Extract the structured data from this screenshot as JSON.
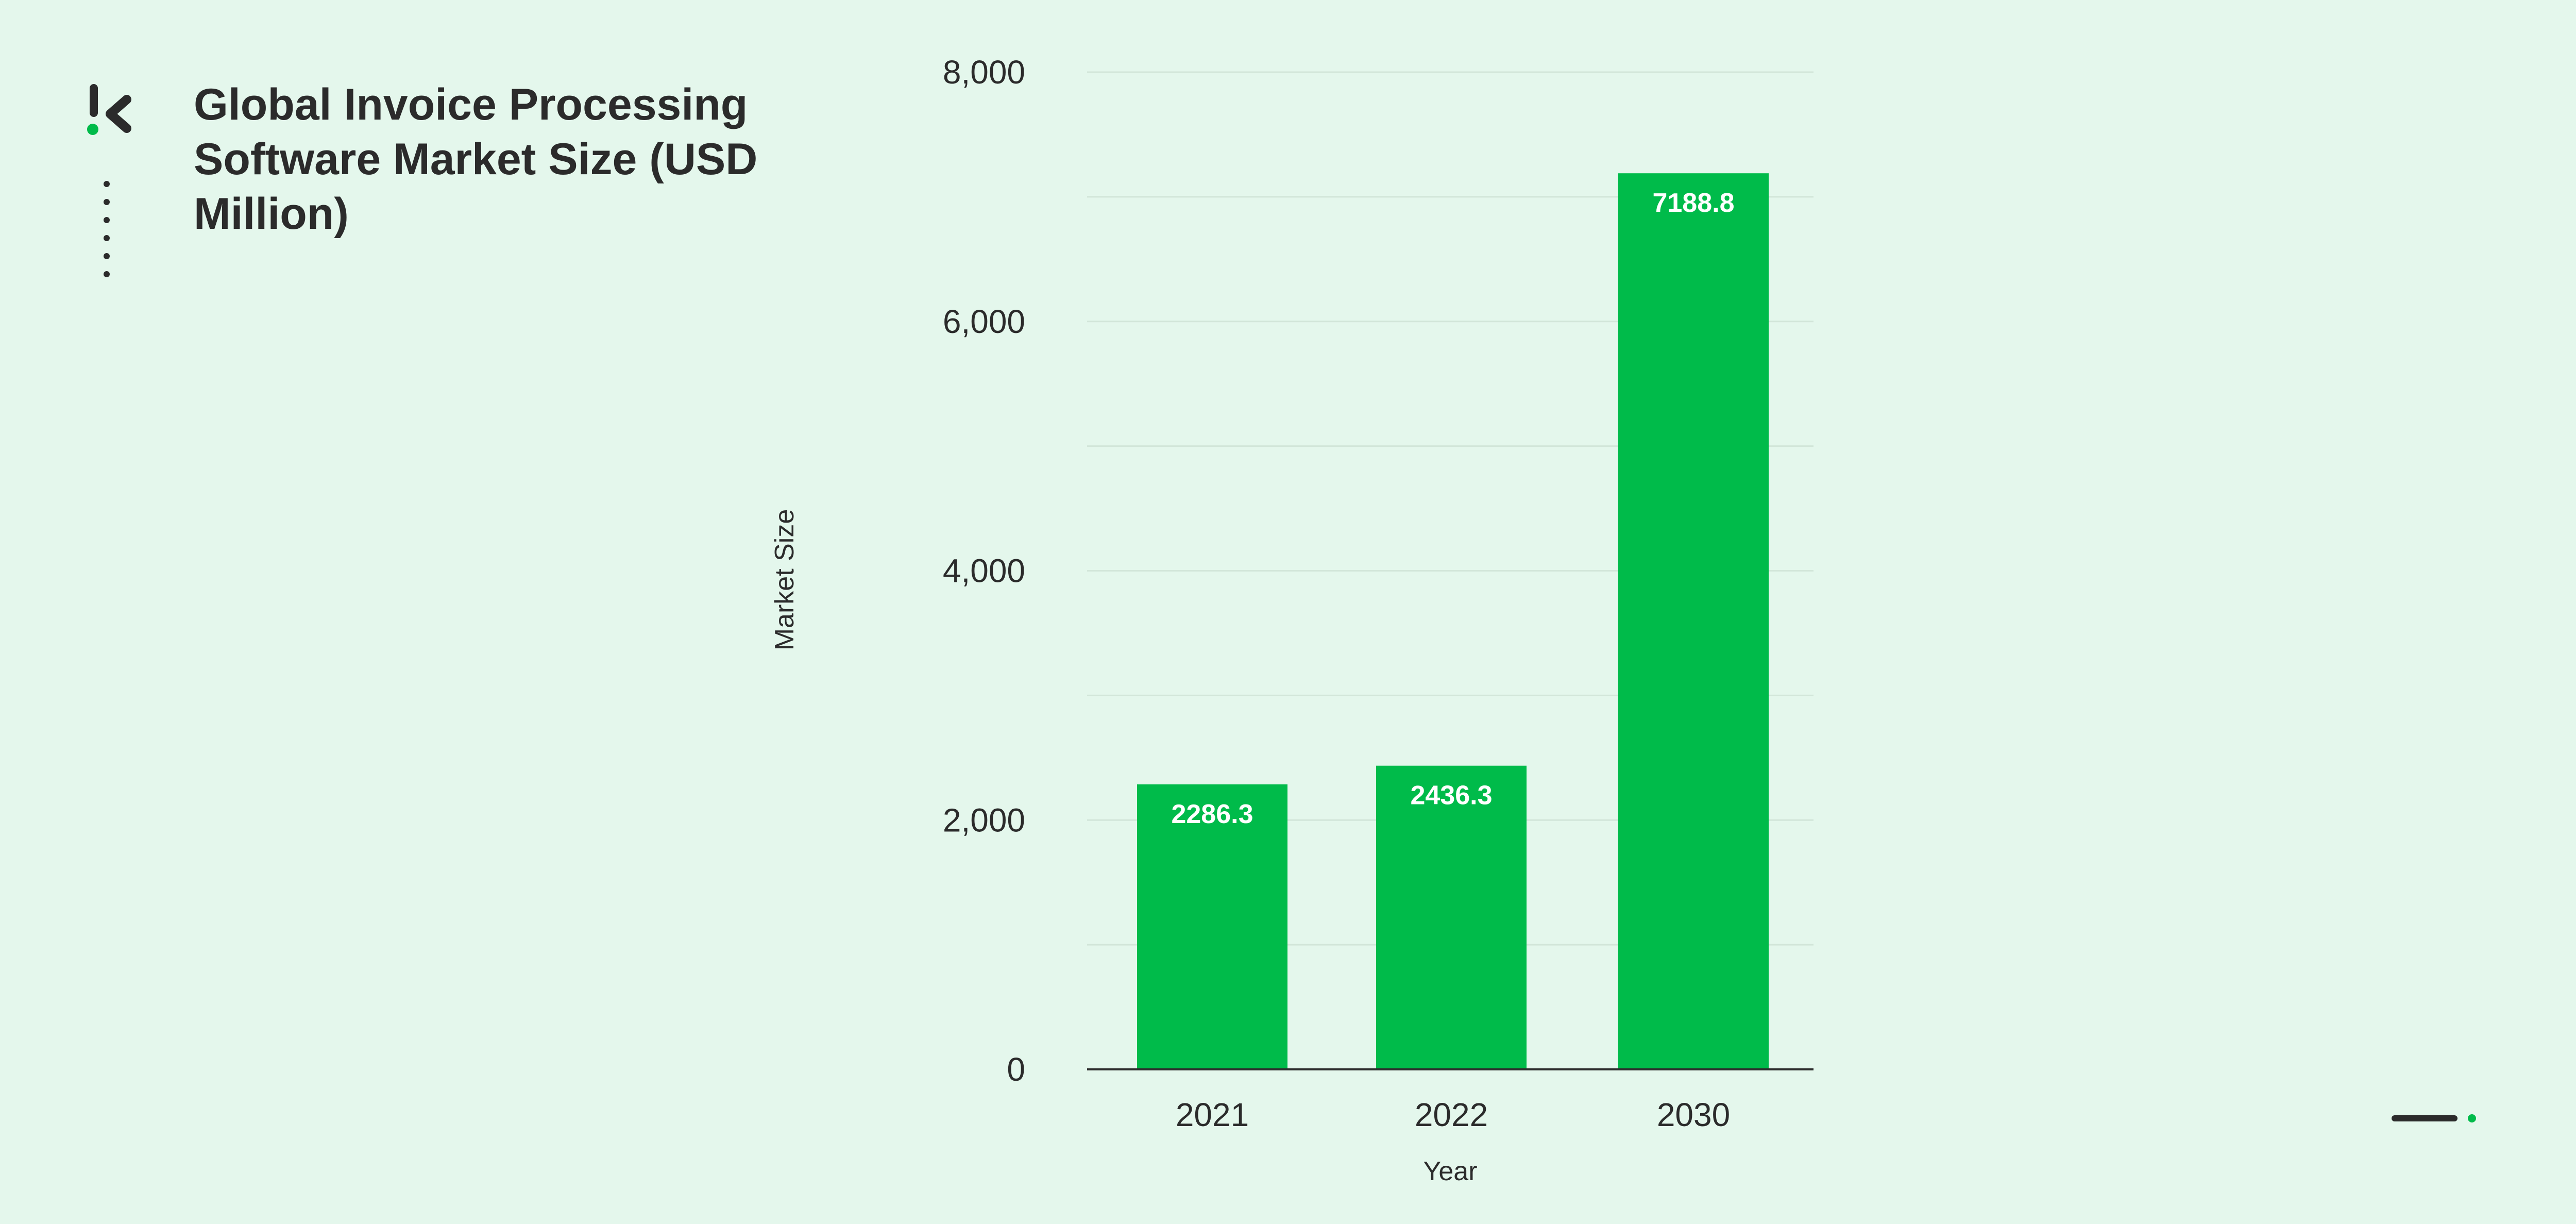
{
  "brand": {
    "logo_icon": "k-logo-icon",
    "accent_color": "#00bb4a",
    "dark_color": "#2b2b2b",
    "background_color": "#e4f7ec"
  },
  "chart_data": {
    "type": "bar",
    "title": "Global Invoice Processing Software Market Size (USD Million)",
    "xlabel": "Year",
    "ylabel": "Market Size",
    "categories": [
      "2021",
      "2022",
      "2030"
    ],
    "values": [
      2286.3,
      2436.3,
      7188.8
    ],
    "value_labels": [
      "2286.3",
      "2436.3",
      "7188.8"
    ],
    "ylim": [
      0,
      8000
    ],
    "yticks": [
      0,
      2000,
      4000,
      6000,
      8000
    ],
    "ytick_labels": [
      "0",
      "2,000",
      "4,000",
      "6,000",
      "8,000"
    ],
    "grid": true,
    "legend": "none",
    "bar_color": "#00bb4a"
  }
}
